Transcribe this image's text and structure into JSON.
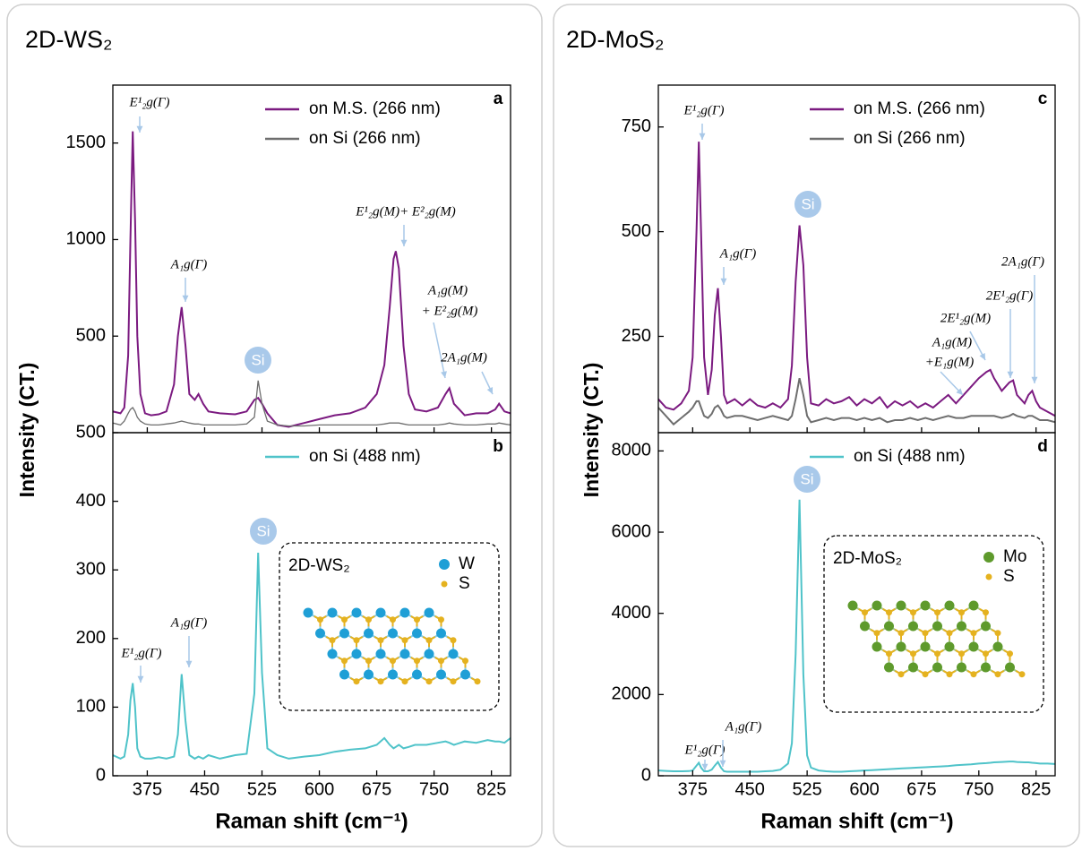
{
  "panels": [
    {
      "title": "2D-WS₂",
      "ylabel": "Intensity (CT.)",
      "xlabel": "Raman shift (cm⁻¹)"
    },
    {
      "title": "2D-MoS₂",
      "ylabel": "Intensity (CT.)",
      "xlabel": "Raman shift (cm⁻¹)"
    }
  ],
  "chart_data": [
    {
      "type": "line",
      "label": "a",
      "legend": "upper right",
      "x": [
        330,
        340,
        345,
        350,
        353,
        356,
        359,
        362,
        366,
        372,
        380,
        390,
        400,
        410,
        415,
        420,
        425,
        430,
        437,
        442,
        448,
        455,
        470,
        490,
        505,
        515,
        520,
        525,
        532,
        545,
        560,
        580,
        600,
        620,
        640,
        660,
        675,
        685,
        692,
        697,
        700,
        704,
        710,
        717,
        725,
        740,
        755,
        765,
        770,
        776,
        790,
        805,
        820,
        830,
        835,
        842,
        850
      ],
      "xlim": [
        330,
        850
      ],
      "xticks": [
        375,
        450,
        525,
        600,
        675,
        750,
        825
      ],
      "ylim": [
        0,
        1800
      ],
      "yticks": [
        500,
        1000,
        1500
      ],
      "series": [
        {
          "name": "on M.S. (266 nm)",
          "color": "#7b1a80",
          "values": [
            110,
            100,
            130,
            400,
            1000,
            1560,
            1100,
            500,
            200,
            100,
            90,
            95,
            110,
            250,
            500,
            650,
            450,
            200,
            170,
            200,
            150,
            110,
            100,
            95,
            110,
            170,
            180,
            150,
            100,
            40,
            30,
            50,
            70,
            90,
            100,
            130,
            200,
            350,
            650,
            900,
            940,
            850,
            450,
            200,
            120,
            110,
            130,
            200,
            230,
            150,
            90,
            100,
            100,
            120,
            150,
            110,
            100
          ]
        },
        {
          "name": "on Si (266 nm)",
          "color": "#6e6e6e",
          "values": [
            50,
            40,
            60,
            100,
            120,
            130,
            110,
            80,
            60,
            45,
            40,
            40,
            45,
            50,
            55,
            60,
            55,
            50,
            45,
            45,
            40,
            40,
            40,
            40,
            45,
            80,
            270,
            150,
            60,
            40,
            35,
            35,
            40,
            40,
            40,
            40,
            40,
            45,
            50,
            50,
            50,
            50,
            45,
            40,
            40,
            40,
            40,
            45,
            50,
            45,
            40,
            40,
            45,
            45,
            50,
            45,
            40
          ]
        }
      ],
      "annotations": [
        "E¹₂g(Γ)",
        "A₁g(Γ)",
        "Si",
        "E¹₂g(M)+ E²₂g(M)",
        "A₁g(M)",
        "+ E²₂g(M)",
        "2A₁g(M)"
      ]
    },
    {
      "type": "line",
      "label": "b",
      "legend": "upper right",
      "x": [
        330,
        340,
        345,
        350,
        353,
        356,
        359,
        362,
        366,
        372,
        380,
        390,
        400,
        410,
        415,
        420,
        425,
        430,
        437,
        442,
        448,
        455,
        470,
        490,
        505,
        515,
        520,
        525,
        532,
        545,
        560,
        580,
        600,
        620,
        640,
        660,
        675,
        685,
        692,
        697,
        700,
        704,
        710,
        717,
        725,
        740,
        755,
        765,
        770,
        776,
        790,
        805,
        820,
        830,
        835,
        842,
        850
      ],
      "xlim": [
        330,
        850
      ],
      "xticks": [
        375,
        450,
        525,
        600,
        675,
        750,
        825
      ],
      "ylim": [
        0,
        500
      ],
      "yticks": [
        0,
        100,
        200,
        300,
        400,
        500
      ],
      "series": [
        {
          "name": "on Si (488 nm)",
          "color": "#4fc3c9",
          "values": [
            30,
            25,
            28,
            60,
            110,
            135,
            100,
            40,
            28,
            25,
            25,
            27,
            25,
            28,
            60,
            148,
            80,
            30,
            25,
            28,
            25,
            30,
            25,
            30,
            32,
            120,
            325,
            150,
            40,
            30,
            25,
            28,
            30,
            35,
            38,
            40,
            45,
            55,
            45,
            40,
            42,
            45,
            40,
            42,
            45,
            45,
            48,
            50,
            48,
            45,
            50,
            48,
            52,
            50,
            50,
            48,
            55
          ]
        }
      ],
      "annotations": [
        "Si",
        "A₁g(Γ)",
        "E¹₂g(Γ)"
      ],
      "inset": {
        "title": "2D-WS₂",
        "atoms": [
          {
            "name": "W",
            "color": "#1f9fd6"
          },
          {
            "name": "S",
            "color": "#e5b21f"
          }
        ]
      }
    },
    {
      "type": "line",
      "label": "c",
      "legend": "upper right",
      "x": [
        330,
        340,
        350,
        360,
        370,
        375,
        380,
        383,
        386,
        390,
        395,
        400,
        404,
        408,
        412,
        416,
        420,
        430,
        440,
        450,
        460,
        470,
        480,
        490,
        500,
        505,
        510,
        515,
        520,
        525,
        530,
        540,
        550,
        560,
        570,
        580,
        590,
        600,
        610,
        620,
        630,
        640,
        650,
        660,
        670,
        680,
        690,
        700,
        710,
        720,
        730,
        740,
        750,
        760,
        765,
        770,
        780,
        790,
        795,
        800,
        810,
        815,
        820,
        825,
        830,
        840,
        850
      ],
      "xlim": [
        330,
        850
      ],
      "xticks": [
        375,
        450,
        525,
        600,
        675,
        750,
        825
      ],
      "ylim": [
        20,
        850
      ],
      "yticks": [
        250,
        500,
        750
      ],
      "series": [
        {
          "name": "on M.S. (266 nm)",
          "color": "#7b1a80",
          "values": [
            100,
            80,
            75,
            90,
            120,
            200,
            500,
            715,
            500,
            200,
            110,
            170,
            300,
            365,
            250,
            110,
            90,
            100,
            85,
            100,
            85,
            80,
            90,
            80,
            100,
            180,
            380,
            515,
            420,
            200,
            90,
            85,
            100,
            90,
            95,
            105,
            85,
            100,
            90,
            105,
            80,
            95,
            85,
            95,
            80,
            90,
            80,
            95,
            110,
            90,
            110,
            130,
            150,
            165,
            170,
            150,
            120,
            140,
            145,
            110,
            90,
            110,
            120,
            95,
            80,
            70,
            60
          ]
        },
        {
          "name": "on Si (266 nm)",
          "color": "#6e6e6e",
          "values": [
            80,
            60,
            40,
            55,
            70,
            80,
            95,
            95,
            80,
            60,
            55,
            65,
            80,
            85,
            75,
            60,
            55,
            60,
            60,
            55,
            50,
            55,
            60,
            55,
            50,
            60,
            100,
            150,
            110,
            60,
            45,
            50,
            55,
            50,
            55,
            55,
            50,
            55,
            50,
            55,
            45,
            50,
            50,
            55,
            50,
            55,
            50,
            55,
            60,
            55,
            55,
            60,
            60,
            60,
            60,
            60,
            55,
            60,
            65,
            60,
            55,
            60,
            60,
            55,
            50,
            50,
            45
          ]
        }
      ],
      "annotations": [
        "E¹₂g(Γ)",
        "Si",
        "A₁g(Γ)",
        "2A₁g(Γ)",
        "2E¹₂g(Γ)",
        "2E¹₂g(M)",
        "A₁g(M)",
        "+E₁g(M)"
      ]
    },
    {
      "type": "line",
      "label": "d",
      "legend": "upper right",
      "x": [
        330,
        340,
        350,
        360,
        370,
        375,
        380,
        383,
        386,
        390,
        395,
        400,
        404,
        408,
        412,
        416,
        420,
        430,
        440,
        450,
        460,
        470,
        480,
        490,
        500,
        505,
        510,
        515,
        520,
        525,
        530,
        540,
        550,
        560,
        570,
        580,
        590,
        600,
        610,
        620,
        630,
        640,
        650,
        660,
        670,
        680,
        690,
        700,
        710,
        720,
        730,
        740,
        750,
        760,
        765,
        770,
        780,
        790,
        795,
        800,
        810,
        815,
        820,
        825,
        830,
        840,
        850
      ],
      "xlim": [
        330,
        850
      ],
      "xticks": [
        375,
        450,
        525,
        600,
        675,
        750,
        825
      ],
      "ylim": [
        0,
        8450
      ],
      "yticks": [
        0,
        2000,
        4000,
        6000,
        8000
      ],
      "series": [
        {
          "name": "on Si (488 nm)",
          "color": "#4fc3c9",
          "values": [
            130,
            120,
            110,
            110,
            115,
            130,
            250,
            320,
            200,
            110,
            110,
            150,
            250,
            340,
            200,
            110,
            100,
            100,
            100,
            100,
            100,
            110,
            120,
            150,
            300,
            800,
            3000,
            6800,
            2500,
            500,
            200,
            130,
            110,
            100,
            100,
            110,
            120,
            130,
            140,
            150,
            160,
            170,
            180,
            190,
            200,
            210,
            220,
            230,
            240,
            260,
            270,
            280,
            300,
            310,
            320,
            330,
            340,
            350,
            350,
            340,
            330,
            330,
            320,
            310,
            300,
            300,
            290
          ]
        }
      ],
      "annotations": [
        "Si",
        "E¹₂g(Γ)",
        "A₁g(Γ)"
      ],
      "inset": {
        "title": "2D-MoS₂",
        "atoms": [
          {
            "name": "Mo",
            "color": "#5e9a2c"
          },
          {
            "name": "S",
            "color": "#e5b21f"
          }
        ]
      }
    }
  ]
}
